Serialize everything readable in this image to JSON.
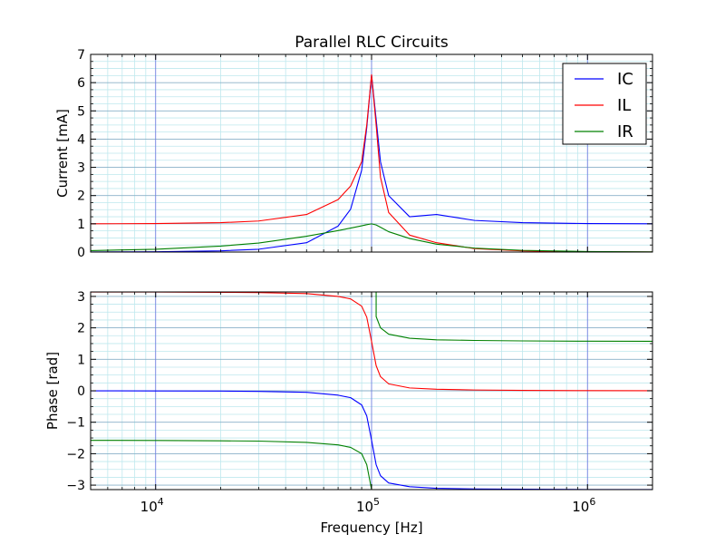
{
  "chart_data": [
    {
      "type": "line",
      "title": "Parallel RLC Circuits",
      "xlabel": "",
      "ylabel": "Current [mA]",
      "xscale": "log",
      "xlim": [
        5000,
        2000000
      ],
      "ylim": [
        0,
        7
      ],
      "yticks": [
        0,
        1,
        2,
        3,
        4,
        5,
        6,
        7
      ],
      "ytick_labels": [
        "0",
        "1",
        "2",
        "3",
        "4",
        "5",
        "6",
        "7"
      ],
      "grid": true,
      "legend": "top-right",
      "x": [
        5000,
        10000,
        20000,
        30000,
        50000,
        70000,
        80000,
        90000,
        95000,
        100000,
        105000,
        110000,
        120000,
        150000,
        200000,
        300000,
        500000,
        1000000,
        2000000
      ],
      "series": [
        {
          "name": "IC",
          "color": "#0000ff",
          "values": [
            0.0025,
            0.01,
            0.042,
            0.1,
            0.33,
            0.92,
            1.52,
            2.9,
            4.4,
            6.28,
            4.7,
            3.2,
            2.0,
            1.25,
            1.33,
            1.12,
            1.04,
            1.01,
            1.0
          ]
        },
        {
          "name": "IL",
          "color": "#ff0000",
          "values": [
            1.0,
            1.01,
            1.04,
            1.1,
            1.33,
            1.86,
            2.34,
            3.2,
            4.5,
            6.28,
            4.5,
            2.65,
            1.4,
            0.6,
            0.33,
            0.12,
            0.04,
            0.01,
            0.0025
          ]
        },
        {
          "name": "IR",
          "color": "#008000",
          "values": [
            0.05,
            0.1,
            0.21,
            0.32,
            0.56,
            0.76,
            0.85,
            0.93,
            0.97,
            1.0,
            0.96,
            0.88,
            0.72,
            0.48,
            0.28,
            0.14,
            0.06,
            0.02,
            0.005
          ]
        }
      ]
    },
    {
      "type": "line",
      "title": "",
      "xlabel": "Frequency [Hz]",
      "ylabel": "Phase [rad]",
      "xscale": "log",
      "xlim": [
        5000,
        2000000
      ],
      "ylim": [
        -3.1416,
        3.1416
      ],
      "yticks": [
        -3,
        -2,
        -1,
        0,
        1,
        2,
        3
      ],
      "ytick_labels": [
        "−3",
        "−2",
        "−1",
        "0",
        "1",
        "2",
        "3"
      ],
      "xticks": [
        10000,
        100000,
        1000000
      ],
      "xtick_labels": [
        {
          "base": "10",
          "exp": "4"
        },
        {
          "base": "10",
          "exp": "5"
        },
        {
          "base": "10",
          "exp": "6"
        }
      ],
      "grid": true,
      "x": [
        5000,
        10000,
        20000,
        30000,
        50000,
        70000,
        80000,
        90000,
        95000,
        100000,
        105000,
        110000,
        120000,
        150000,
        200000,
        300000,
        500000,
        1000000,
        2000000
      ],
      "series": [
        {
          "name": "IC",
          "color": "#0000ff",
          "values": [
            -0.002,
            -0.005,
            -0.01,
            -0.02,
            -0.05,
            -0.14,
            -0.22,
            -0.45,
            -0.8,
            -1.57,
            -2.35,
            -2.7,
            -2.93,
            -3.05,
            -3.1,
            -3.12,
            -3.13,
            -3.138,
            -3.14
          ]
        },
        {
          "name": "IL",
          "color": "#ff0000",
          "values": [
            3.14,
            3.138,
            3.13,
            3.12,
            3.09,
            3.0,
            2.92,
            2.69,
            2.34,
            1.57,
            0.8,
            0.45,
            0.22,
            0.09,
            0.05,
            0.025,
            0.012,
            0.005,
            0.002
          ]
        },
        {
          "name": "IR",
          "color": "#008000",
          "values": [
            -1.575,
            -1.58,
            -1.59,
            -1.6,
            -1.64,
            -1.72,
            -1.8,
            -2.0,
            -2.35,
            -3.14,
            2.36,
            2.0,
            1.8,
            1.67,
            1.62,
            1.6,
            1.585,
            1.575,
            1.572
          ]
        }
      ]
    }
  ]
}
